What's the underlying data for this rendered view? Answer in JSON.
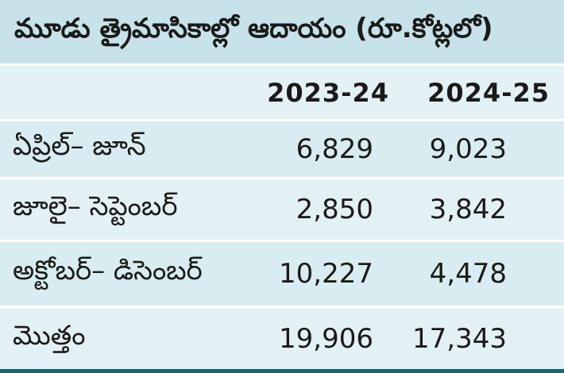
{
  "title": "మూడు త్రైమాసికాల్లో ఆదాయం (రూ.కోట్లలో)",
  "columns": [
    "2023-24",
    "2024-25"
  ],
  "rows": [
    {
      "label": "ఏప్రిల్– జూన్",
      "values": [
        "6,829",
        "9,023"
      ]
    },
    {
      "label": "జూలై– సెప్టెంబర్",
      "values": [
        "2,850",
        "3,842"
      ]
    },
    {
      "label": "అక్టోబర్– డిసెంబర్",
      "values": [
        "10,227",
        "4,478"
      ]
    },
    {
      "label": "మొత్తం",
      "values": [
        "19,906",
        "17,343"
      ]
    }
  ],
  "colors": {
    "title_bg": "#c7e2e9",
    "row_bg": "#d8ecf1",
    "bottom_border": "#0e6e74"
  }
}
